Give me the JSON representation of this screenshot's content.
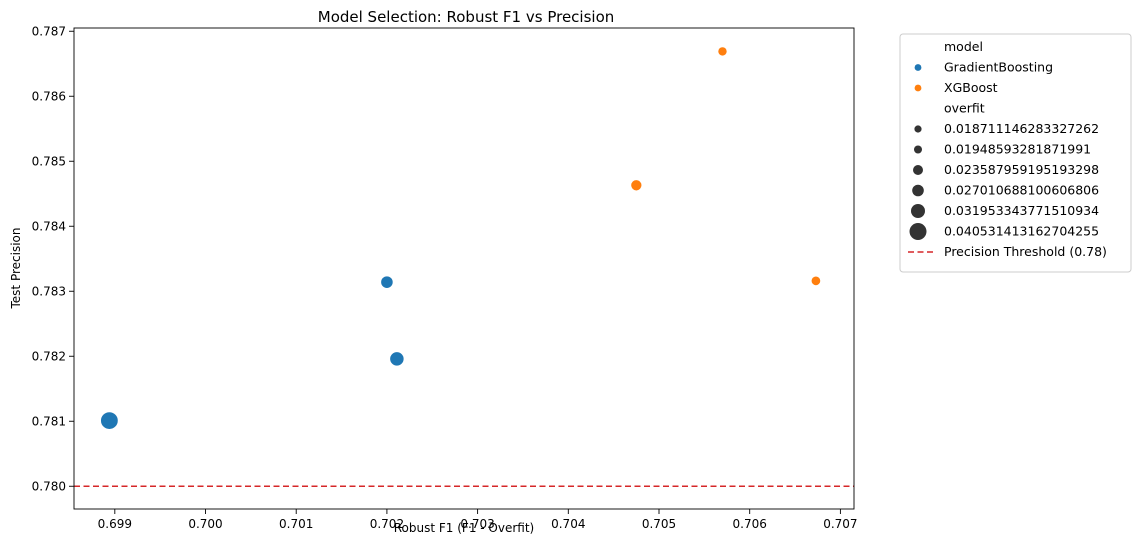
{
  "chart_data": {
    "type": "scatter",
    "title": "Model Selection: Robust F1 vs Precision",
    "xlabel": "Robust F1 (F1 - Overfit)",
    "ylabel": "Test Precision",
    "xlim": [
      0.69855,
      0.70715
    ],
    "ylim": [
      0.77965,
      0.78705
    ],
    "xticks": [
      0.699,
      0.7,
      0.701,
      0.702,
      0.703,
      0.704,
      0.705,
      0.706,
      0.707
    ],
    "xtick_labels": [
      "0.699",
      "0.700",
      "0.701",
      "0.702",
      "0.703",
      "0.704",
      "0.705",
      "0.706",
      "0.707"
    ],
    "yticks": [
      0.78,
      0.781,
      0.782,
      0.783,
      0.784,
      0.785,
      0.786,
      0.787
    ],
    "ytick_labels": [
      "0.780",
      "0.781",
      "0.782",
      "0.783",
      "0.784",
      "0.785",
      "0.786",
      "0.787"
    ],
    "grid": false,
    "legend_placement": "outside-top-right",
    "hue_title": "model",
    "size_title": "overfit",
    "series": [
      {
        "name": "GradientBoosting",
        "color": "#1f77b4",
        "points": [
          {
            "x": 0.702,
            "y": 0.78314,
            "overfit": 0.027010688100606806
          },
          {
            "x": 0.70211,
            "y": 0.78196,
            "overfit": 0.031953343771510934
          },
          {
            "x": 0.69894,
            "y": 0.78101,
            "overfit": 0.040531413162704255
          }
        ]
      },
      {
        "name": "XGBoost",
        "color": "#ff7f0e",
        "points": [
          {
            "x": 0.7057,
            "y": 0.78669,
            "overfit": 0.018711146283327262
          },
          {
            "x": 0.70475,
            "y": 0.78463,
            "overfit": 0.023587959195193298
          },
          {
            "x": 0.70673,
            "y": 0.78316,
            "overfit": 0.01948593281871991
          }
        ]
      }
    ],
    "size_legend": [
      {
        "label": "0.018711146283327262",
        "value": 0.018711146283327262
      },
      {
        "label": "0.01948593281871991",
        "value": 0.01948593281871991
      },
      {
        "label": "0.023587959195193298",
        "value": 0.023587959195193298
      },
      {
        "label": "0.027010688100606806",
        "value": 0.027010688100606806
      },
      {
        "label": "0.031953343771510934",
        "value": 0.031953343771510934
      },
      {
        "label": "0.040531413162704255",
        "value": 0.040531413162704255
      }
    ],
    "size_legend_color": "#333333",
    "threshold": {
      "label": "Precision Threshold (0.78)",
      "y": 0.78,
      "color": "#d62728",
      "style": "dashed"
    }
  }
}
